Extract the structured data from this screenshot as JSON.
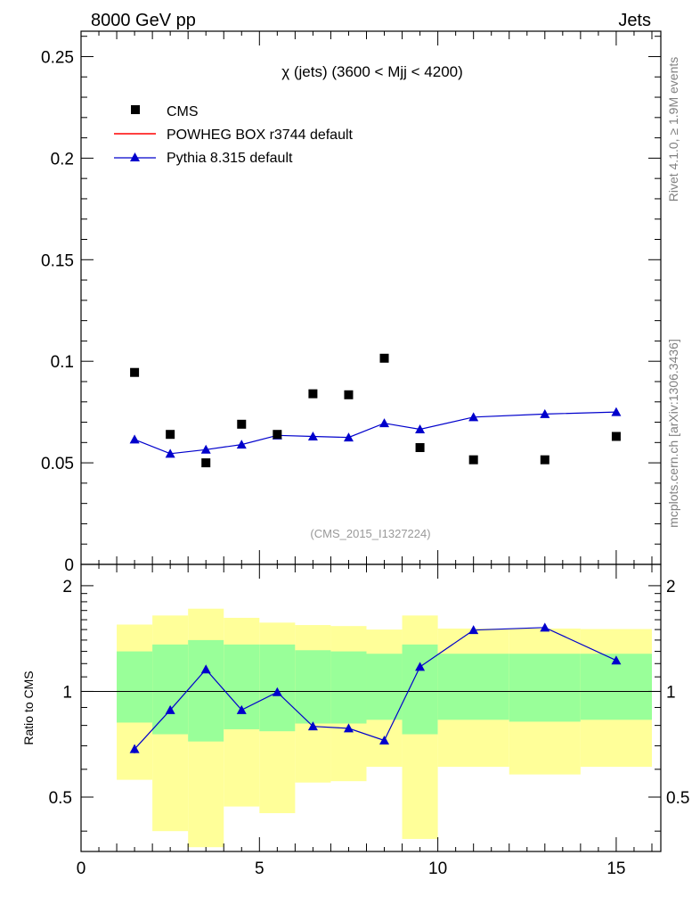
{
  "header": {
    "left_label": "8000 GeV pp",
    "right_label": "Jets"
  },
  "side_labels": {
    "rivet": "Rivet 4.1.0, ≥ 1.9M events",
    "mcplots": "mcplots.cern.ch [arXiv:1306.3436]"
  },
  "colors": {
    "cms": "#000000",
    "powheg": "#ff0000",
    "pythia": "#0000cc",
    "band_outer": "#ffff99",
    "band_inner": "#99ff99"
  },
  "chart_data": [
    {
      "type": "scatter",
      "title": "χ (jets) (3600 < Mjj < 4200)",
      "watermark": "(CMS_2015_I1327224)",
      "xlim": [
        0,
        16.25
      ],
      "ylim": [
        0,
        0.2625
      ],
      "y_ticks": [
        0,
        0.05,
        0.1,
        0.15,
        0.2,
        0.25
      ],
      "y_tick_labels": [
        "0",
        "0.05",
        "0.1",
        "0.15",
        "0.2",
        "0.25"
      ],
      "legend": [
        {
          "name": "CMS",
          "marker": "square"
        },
        {
          "name": "POWHEG BOX r3744 default",
          "marker": "line"
        },
        {
          "name": "Pythia 8.315 default",
          "marker": "triangle-line"
        }
      ],
      "series": [
        {
          "name": "CMS",
          "x": [
            1.5,
            2.5,
            3.5,
            4.5,
            5.5,
            6.5,
            7.5,
            8.5,
            9.5,
            11,
            13,
            15
          ],
          "values": [
            0.0945,
            0.064,
            0.05,
            0.069,
            0.064,
            0.084,
            0.0835,
            0.1015,
            0.0575,
            0.0515,
            0.0515,
            0.063
          ]
        },
        {
          "name": "Pythia 8.315 default",
          "x": [
            1.5,
            2.5,
            3.5,
            4.5,
            5.5,
            6.5,
            7.5,
            8.5,
            9.5,
            11,
            13,
            15
          ],
          "values": [
            0.0615,
            0.0545,
            0.0565,
            0.059,
            0.0635,
            0.063,
            0.0625,
            0.0695,
            0.0665,
            0.0725,
            0.074,
            0.075
          ],
          "errors": [
            0.0015,
            0.001,
            0.0013,
            0.0013,
            0.001,
            0.0012,
            0.001,
            0.0015,
            0.0015,
            0.0008,
            0.0006,
            0.0006
          ]
        }
      ]
    },
    {
      "type": "line",
      "ylabel": "Ratio to CMS",
      "xlim": [
        0,
        16.25
      ],
      "ylim": [
        0.35,
        2.3
      ],
      "x_ticks": [
        0,
        5,
        10,
        15
      ],
      "x_tick_labels": [
        "0",
        "5",
        "10",
        "15"
      ],
      "y_ticks": [
        0.5,
        1,
        2
      ],
      "y_tick_labels": [
        "0.5",
        "1",
        "2"
      ],
      "bands": {
        "edges": [
          1,
          2,
          3,
          4,
          5,
          6,
          7,
          8,
          9,
          10,
          12,
          14,
          16
        ],
        "outer_low": [
          0.56,
          0.4,
          0.36,
          0.47,
          0.45,
          0.55,
          0.555,
          0.61,
          0.38,
          0.61,
          0.58,
          0.61
        ],
        "outer_high": [
          1.55,
          1.645,
          1.72,
          1.62,
          1.57,
          1.545,
          1.535,
          1.5,
          1.645,
          1.51,
          1.51,
          1.505
        ],
        "inner_low": [
          0.815,
          0.755,
          0.72,
          0.78,
          0.77,
          0.81,
          0.81,
          0.83,
          0.755,
          0.83,
          0.82,
          0.83
        ],
        "inner_high": [
          1.3,
          1.36,
          1.4,
          1.36,
          1.36,
          1.31,
          1.3,
          1.28,
          1.36,
          1.28,
          1.28,
          1.28
        ]
      },
      "series": [
        {
          "name": "Pythia 8.315 default",
          "x": [
            1.5,
            2.5,
            3.5,
            4.5,
            5.5,
            6.5,
            7.5,
            8.5,
            9.5,
            11,
            13,
            15
          ],
          "values": [
            0.685,
            0.885,
            1.155,
            0.885,
            0.995,
            0.795,
            0.785,
            0.725,
            1.175,
            1.495,
            1.52,
            1.225
          ],
          "errors": [
            0.018,
            0.02,
            0.025,
            0.02,
            0.022,
            0.018,
            0.015,
            0.015,
            0.022,
            0.015,
            0.012,
            0.012
          ]
        }
      ]
    }
  ]
}
